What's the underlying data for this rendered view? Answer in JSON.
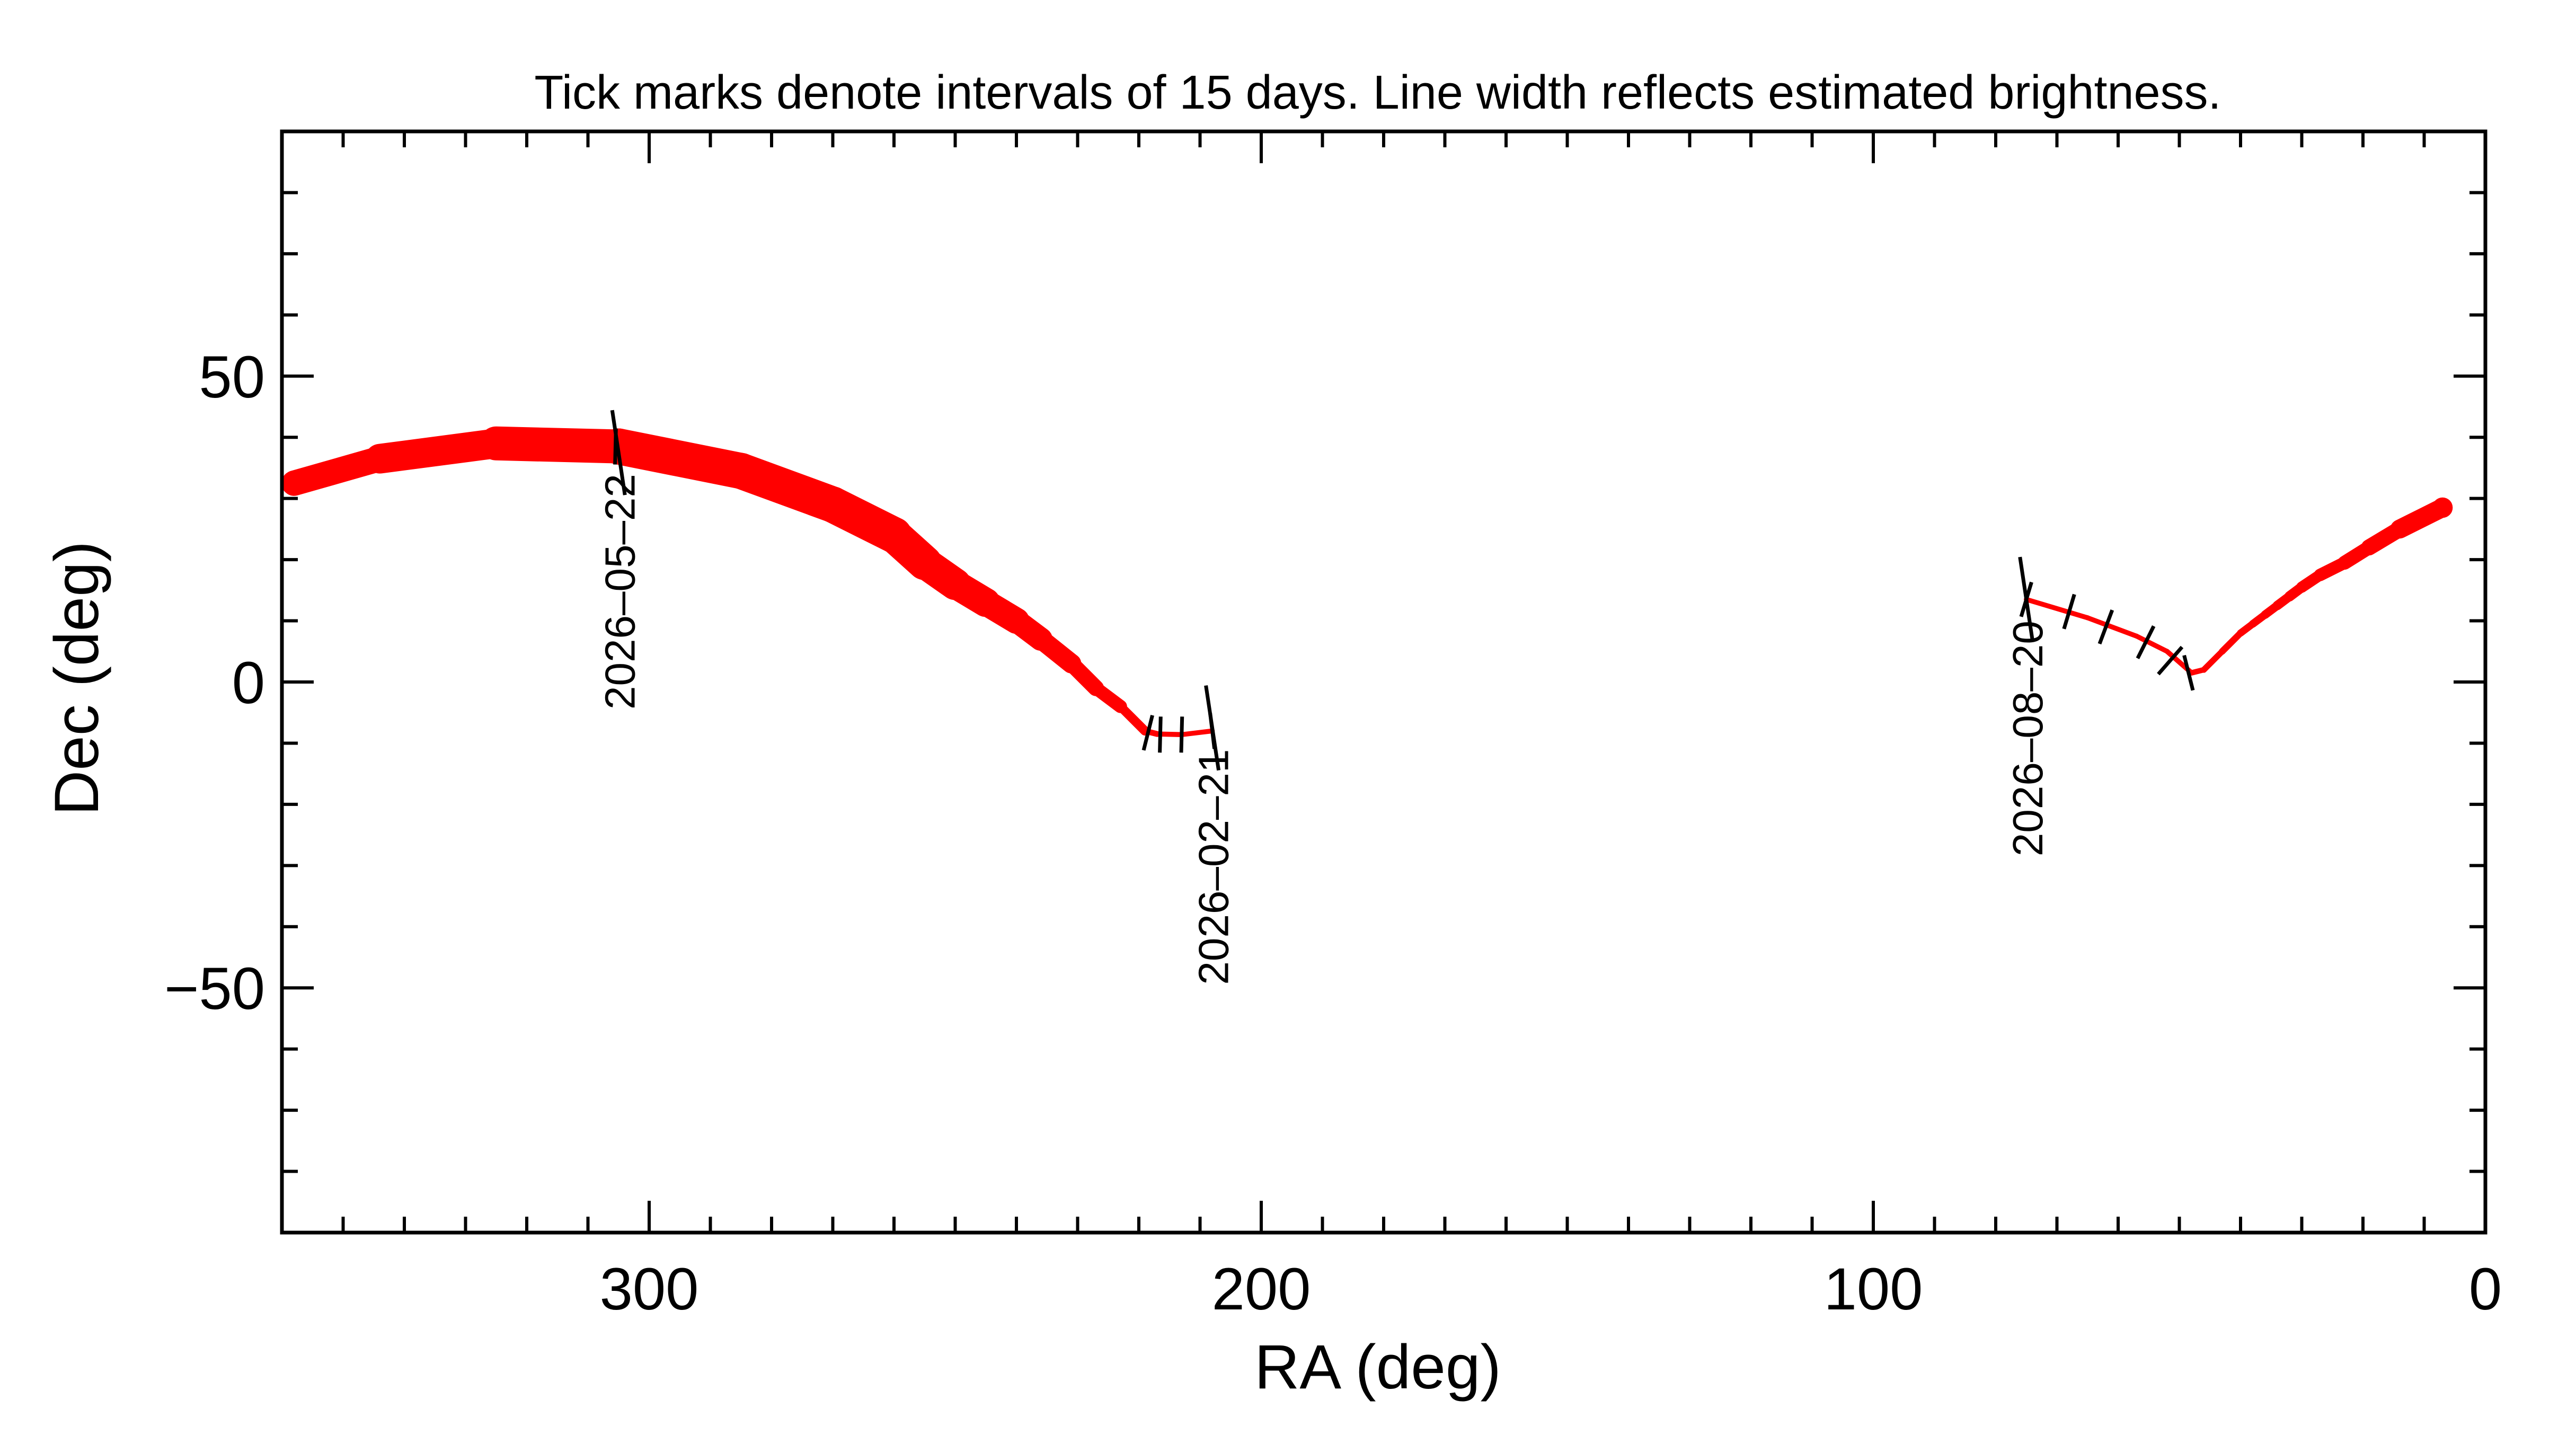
{
  "chart_data": {
    "type": "line",
    "title": "Tick marks denote intervals of 15 days.  Line width reflects estimated brightness.",
    "xlabel": "RA (deg)",
    "ylabel": "Dec (deg)",
    "xlim": [
      360,
      0
    ],
    "ylim": [
      -90,
      90
    ],
    "x_ticks": [
      300,
      200,
      100,
      0
    ],
    "x_tick_labels": [
      "300",
      "200",
      "100",
      "0"
    ],
    "y_ticks": [
      50,
      0,
      -50
    ],
    "y_tick_labels": [
      "50",
      "0",
      "−50"
    ],
    "grid": false,
    "colors": {
      "path": "#ff0000",
      "ticks": "#000000",
      "axes": "#000000"
    },
    "series": [
      {
        "points": [
          {
            "ra": 208,
            "dec": -8.0,
            "size": 0.6
          },
          {
            "ra": 213,
            "dec": -8.6,
            "size": 0.6
          },
          {
            "ra": 217,
            "dec": -8.5,
            "size": 0.7
          },
          {
            "ra": 219,
            "dec": -8.0,
            "size": 1.2
          },
          {
            "ra": 223,
            "dec": -4.0,
            "size": 3
          },
          {
            "ra": 227,
            "dec": -1.0,
            "size": 4
          },
          {
            "ra": 231,
            "dec": 3.0,
            "size": 5
          },
          {
            "ra": 236,
            "dec": 7.0,
            "size": 6.5
          },
          {
            "ra": 240,
            "dec": 10.0,
            "size": 7.5
          },
          {
            "ra": 245,
            "dec": 13.0,
            "size": 8.5
          },
          {
            "ra": 250,
            "dec": 16.0,
            "size": 9.5
          },
          {
            "ra": 255,
            "dec": 19.5,
            "size": 10.5
          },
          {
            "ra": 260,
            "dec": 24.0,
            "size": 11.5
          },
          {
            "ra": 270,
            "dec": 29.0,
            "size": 11.5
          },
          {
            "ra": 285,
            "dec": 34.5,
            "size": 11.5
          },
          {
            "ra": 305,
            "dec": 38.5,
            "size": 11.5
          },
          {
            "ra": 325,
            "dec": 39.0,
            "size": 10
          },
          {
            "ra": 344,
            "dec": 36.5,
            "size": 8.5
          },
          {
            "ra": 358,
            "dec": 32.5,
            "size": 7
          }
        ]
      },
      {
        "points": [
          {
            "ra": 7,
            "dec": 28.5,
            "size": 6
          },
          {
            "ra": 14,
            "dec": 25.0,
            "size": 5
          },
          {
            "ra": 19,
            "dec": 22.0,
            "size": 4
          },
          {
            "ra": 23,
            "dec": 19.5,
            "size": 3.5
          },
          {
            "ra": 27,
            "dec": 17.5,
            "size": 3
          },
          {
            "ra": 30,
            "dec": 15.5,
            "size": 2.6
          },
          {
            "ra": 32,
            "dec": 14.0,
            "size": 2.3
          },
          {
            "ra": 34,
            "dec": 12.5,
            "size": 2.0
          },
          {
            "ra": 36,
            "dec": 11.0,
            "size": 1.7
          },
          {
            "ra": 38,
            "dec": 9.5,
            "size": 1.5
          },
          {
            "ra": 40,
            "dec": 8.0,
            "size": 1.3
          },
          {
            "ra": 43,
            "dec": 5.0,
            "size": 1.1
          },
          {
            "ra": 46,
            "dec": 2.0,
            "size": 0.9
          },
          {
            "ra": 48,
            "dec": 1.5,
            "size": 0.7
          },
          {
            "ra": 52,
            "dec": 5.0,
            "size": 0.6
          },
          {
            "ra": 57,
            "dec": 7.5,
            "size": 0.6
          },
          {
            "ra": 65,
            "dec": 10.5,
            "size": 0.6
          },
          {
            "ra": 75,
            "dec": 13.5,
            "size": 0.6
          }
        ]
      }
    ],
    "interval_ticks": [
      {
        "ra": 208,
        "dec": -8.0
      },
      {
        "ra": 213,
        "dec": -8.6
      },
      {
        "ra": 216.5,
        "dec": -8.6
      },
      {
        "ra": 218.5,
        "dec": -8.3
      },
      {
        "ra": 305.5,
        "dec": 38.5
      },
      {
        "ra": 48.5,
        "dec": 1.5
      },
      {
        "ra": 51.5,
        "dec": 3.5
      },
      {
        "ra": 55.5,
        "dec": 6.5
      },
      {
        "ra": 62,
        "dec": 9.0
      },
      {
        "ra": 68,
        "dec": 11.5
      },
      {
        "ra": 75,
        "dec": 13.5
      }
    ],
    "annotations": [
      {
        "text": "2026–05–22",
        "ra": 305,
        "dec": 37.5
      },
      {
        "text": "2026–02–21",
        "ra": 208,
        "dec": -7.5
      },
      {
        "text": "2026–08–20",
        "ra": 75,
        "dec": 13.5
      }
    ]
  }
}
